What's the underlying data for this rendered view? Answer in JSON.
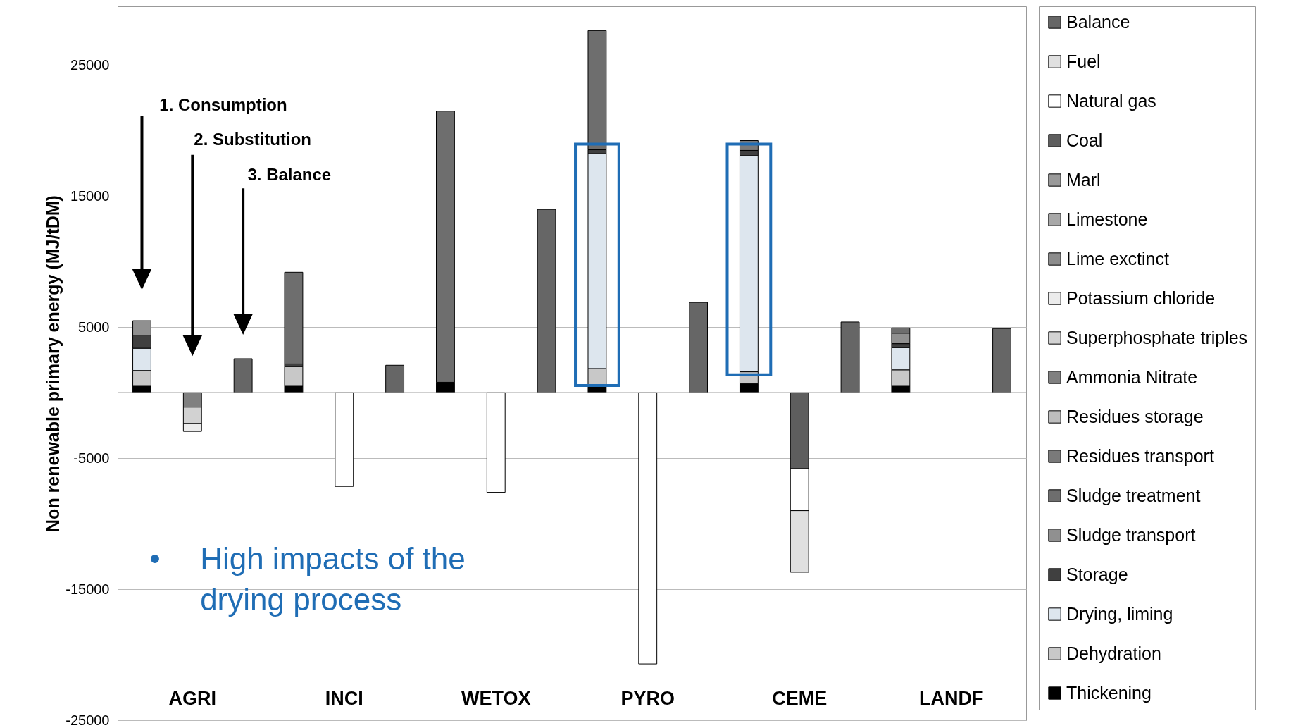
{
  "chart_data": {
    "type": "bar",
    "stacked": true,
    "ylabel": "Non renewable primary energy (MJ/tDM)",
    "categories": [
      null,
      "AGRI",
      null,
      null,
      "INCI",
      null,
      null,
      "WETOX",
      null,
      null,
      "PYRO",
      null,
      null,
      "CEME",
      null,
      null,
      "LANDF",
      null
    ],
    "series": [
      {
        "name": "Thickening",
        "color": "#000000",
        "values": [
          500,
          null,
          null,
          500,
          null,
          null,
          800,
          null,
          null,
          550,
          null,
          null,
          700,
          null,
          null,
          500,
          null,
          null
        ]
      },
      {
        "name": "Dehydration",
        "color": "#c8c8c8",
        "values": [
          1200,
          null,
          null,
          1500,
          null,
          null,
          null,
          null,
          null,
          1300,
          null,
          null,
          900,
          null,
          null,
          1250,
          null,
          null
        ]
      },
      {
        "name": "Drying, liming",
        "color": "#dde6ee",
        "values": [
          1700,
          null,
          null,
          null,
          null,
          null,
          null,
          null,
          null,
          16400,
          null,
          null,
          16500,
          null,
          null,
          1700,
          null,
          null
        ]
      },
      {
        "name": "Storage",
        "color": "#404040",
        "values": [
          1000,
          null,
          null,
          200,
          null,
          null,
          null,
          null,
          null,
          300,
          null,
          null,
          400,
          null,
          null,
          300,
          null,
          null
        ]
      },
      {
        "name": "Sludge transport",
        "color": "#909090",
        "values": [
          1100,
          null,
          null,
          null,
          null,
          null,
          null,
          null,
          null,
          null,
          null,
          null,
          null,
          null,
          null,
          800,
          null,
          null
        ]
      },
      {
        "name": "Sludge treatment",
        "color": "#6e6e6e",
        "values": [
          null,
          null,
          null,
          7000,
          null,
          null,
          20700,
          null,
          null,
          9100,
          null,
          null,
          null,
          null,
          null,
          400,
          null,
          null
        ]
      },
      {
        "name": "Residues transport",
        "color": "#7a7a7a",
        "values": [
          null,
          null,
          null,
          null,
          null,
          null,
          null,
          null,
          null,
          null,
          null,
          null,
          750,
          null,
          null,
          null,
          null,
          null
        ]
      },
      {
        "name": "Residues storage",
        "color": "#bdbdbd",
        "values": [
          null,
          null,
          null,
          null,
          null,
          null,
          null,
          null,
          null,
          null,
          null,
          null,
          null,
          null,
          null,
          null,
          null,
          null
        ]
      },
      {
        "name": "Ammonia Nitrate",
        "color": "#808080",
        "values": [
          null,
          -1100,
          null,
          null,
          null,
          null,
          null,
          null,
          null,
          null,
          null,
          null,
          null,
          null,
          null,
          null,
          null,
          null
        ]
      },
      {
        "name": "Superphosphate triples",
        "color": "#d2d2d2",
        "values": [
          null,
          -1250,
          null,
          null,
          null,
          null,
          null,
          null,
          null,
          null,
          null,
          null,
          null,
          null,
          null,
          null,
          null,
          null
        ]
      },
      {
        "name": "Potassium chloride",
        "color": "#ececec",
        "values": [
          null,
          -600,
          null,
          null,
          null,
          null,
          null,
          null,
          null,
          null,
          null,
          null,
          null,
          null,
          null,
          null,
          null,
          null
        ]
      },
      {
        "name": "Lime exctinct",
        "color": "#8c8c8c",
        "values": [
          null,
          null,
          null,
          null,
          null,
          null,
          null,
          null,
          null,
          null,
          null,
          null,
          null,
          null,
          null,
          null,
          null,
          null
        ]
      },
      {
        "name": "Limestone",
        "color": "#a8a8a8",
        "values": [
          null,
          null,
          null,
          null,
          null,
          null,
          null,
          null,
          null,
          null,
          null,
          null,
          null,
          null,
          null,
          null,
          null,
          null
        ]
      },
      {
        "name": "Marl",
        "color": "#9a9a9a",
        "values": [
          null,
          null,
          null,
          null,
          null,
          null,
          null,
          null,
          null,
          null,
          null,
          null,
          null,
          null,
          null,
          null,
          null,
          null
        ]
      },
      {
        "name": "Coal",
        "color": "#5e5e5e",
        "values": [
          null,
          null,
          null,
          null,
          null,
          null,
          null,
          null,
          null,
          null,
          null,
          null,
          null,
          -5800,
          null,
          null,
          null,
          null
        ]
      },
      {
        "name": "Natural gas",
        "color": "#ffffff",
        "values": [
          null,
          null,
          null,
          null,
          -7150,
          null,
          null,
          -7600,
          null,
          null,
          -20700,
          null,
          null,
          -3200,
          null,
          null,
          null,
          null
        ]
      },
      {
        "name": "Fuel",
        "color": "#e0e0e0",
        "values": [
          null,
          null,
          null,
          null,
          null,
          null,
          null,
          null,
          null,
          null,
          null,
          null,
          null,
          -4700,
          null,
          null,
          null,
          null
        ]
      },
      {
        "name": "Balance",
        "color": "#666666",
        "values": [
          null,
          null,
          2600,
          null,
          null,
          2100,
          null,
          null,
          14000,
          null,
          null,
          6900,
          null,
          null,
          5400,
          null,
          null,
          4900
        ]
      }
    ],
    "ylim": [
      -25000,
      29500
    ],
    "yticks": [
      25000,
      15000,
      5000,
      -5000,
      -15000,
      -25000
    ],
    "grid": "y",
    "legend": "right",
    "ref_lines": [
      {
        "axis": "y",
        "value": 0,
        "color": "#a0a0a0"
      }
    ],
    "annotations": [
      "1. Consumption",
      "2. Substitution",
      "3. Balance",
      "• High impacts of the drying process"
    ]
  }
}
